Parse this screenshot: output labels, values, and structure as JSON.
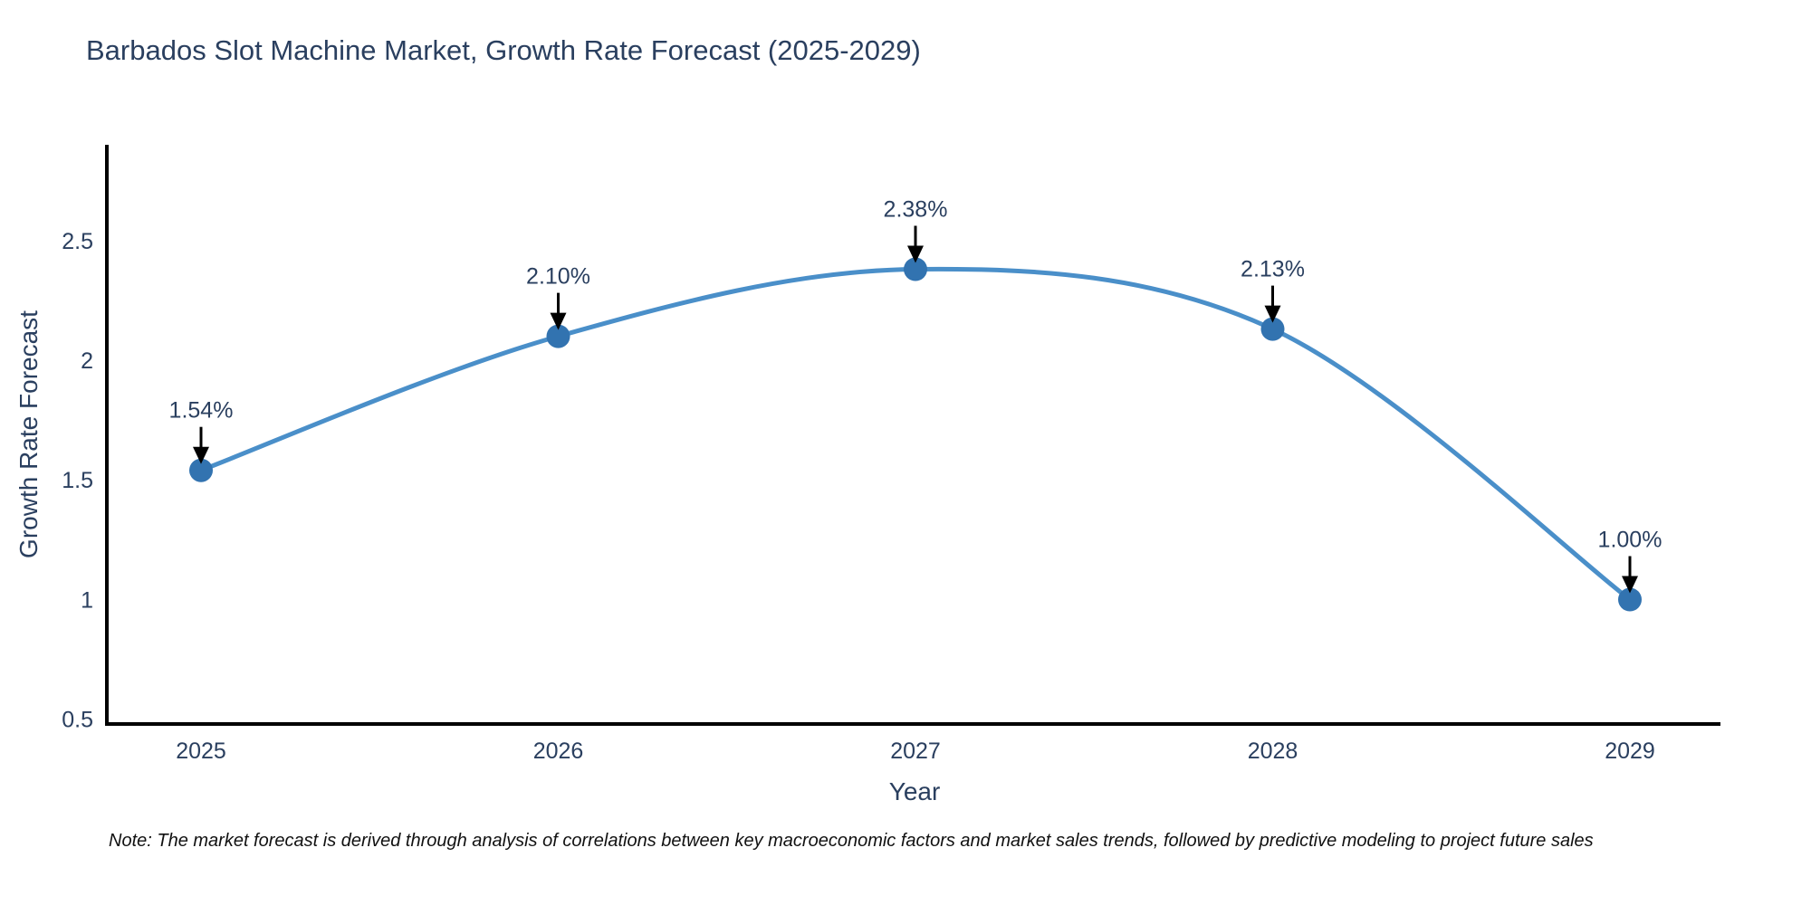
{
  "title": "Barbados Slot Machine Market, Growth Rate Forecast (2025-2029)",
  "note": "Note: The market forecast is derived through analysis of correlations between key macroeconomic factors and market sales trends, followed by predictive modeling to project future sales",
  "colors": {
    "background": "#ffffff",
    "title_text": "#2a3f5f",
    "tick_text": "#2a3f5f",
    "axis_line": "#000000",
    "line": "#4a8fc9",
    "marker": "#3273b0",
    "annotation_text": "#2a3f5f",
    "arrow": "#000000",
    "note_text": "#111111"
  },
  "chart_data": {
    "type": "line",
    "title": "Barbados Slot Machine Market, Growth Rate Forecast (2025-2029)",
    "xlabel": "Year",
    "ylabel": "Growth Rate Forecast",
    "x": [
      2025,
      2026,
      2027,
      2028,
      2029
    ],
    "series": [
      {
        "name": "Growth Rate Forecast",
        "values": [
          1.54,
          2.1,
          2.38,
          2.13,
          1.0
        ]
      }
    ],
    "annotations": [
      "1.54%",
      "2.10%",
      "2.38%",
      "2.13%",
      "1.00%"
    ],
    "yticks": [
      0.5,
      1,
      1.5,
      2,
      2.5
    ],
    "ylim": [
      0.48,
      2.9
    ],
    "grid": false,
    "legend": "none",
    "line_shape": "spline",
    "marker_style": "circle"
  }
}
